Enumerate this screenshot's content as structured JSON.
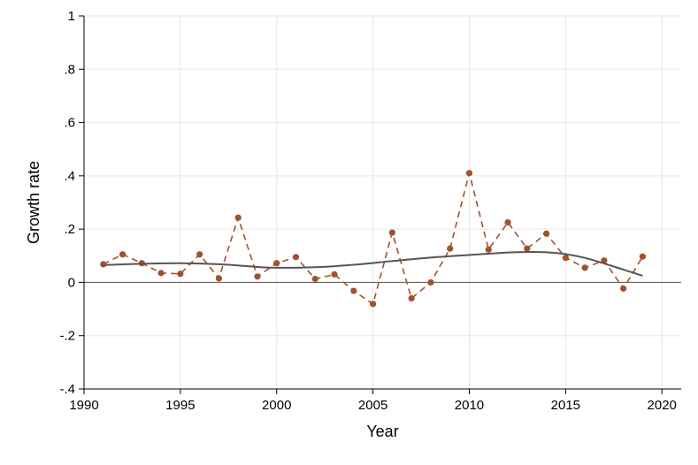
{
  "chart_data": {
    "type": "line",
    "xlabel": "Year",
    "ylabel": "Growth rate",
    "xlim": [
      1990,
      2021
    ],
    "ylim": [
      -0.4,
      1.0
    ],
    "x_ticks": [
      {
        "value": 1990,
        "label": "1990"
      },
      {
        "value": 1995,
        "label": "1995"
      },
      {
        "value": 2000,
        "label": "2000"
      },
      {
        "value": 2005,
        "label": "2005"
      },
      {
        "value": 2010,
        "label": "2010"
      },
      {
        "value": 2015,
        "label": "2015"
      },
      {
        "value": 2020,
        "label": "2020"
      }
    ],
    "y_ticks": [
      {
        "value": -0.4,
        "label": "-.4"
      },
      {
        "value": -0.2,
        "label": "-.2"
      },
      {
        "value": 0,
        "label": "0"
      },
      {
        "value": 0.2,
        "label": ".2"
      },
      {
        "value": 0.4,
        "label": ".4"
      },
      {
        "value": 0.6,
        "label": ".6"
      },
      {
        "value": 0.8,
        "label": ".8"
      },
      {
        "value": 1,
        "label": "1"
      }
    ],
    "grid": true,
    "reference_line_y": 0,
    "series": [
      {
        "style": "dashed-with-markers",
        "color": "#a0522d",
        "x": [
          1991,
          1992,
          1993,
          1994,
          1995,
          1996,
          1997,
          1998,
          1999,
          2000,
          2001,
          2002,
          2003,
          2004,
          2005,
          2006,
          2007,
          2008,
          2009,
          2010,
          2011,
          2012,
          2013,
          2014,
          2015,
          2016,
          2017,
          2018,
          2019
        ],
        "values": [
          0.068,
          0.105,
          0.072,
          0.035,
          0.032,
          0.105,
          0.015,
          0.243,
          0.022,
          0.072,
          0.095,
          0.013,
          0.03,
          -0.032,
          -0.081,
          0.187,
          -0.06,
          0.0,
          0.127,
          0.41,
          0.123,
          0.225,
          0.127,
          0.183,
          0.092,
          0.055,
          0.082,
          -0.023,
          0.097
        ]
      },
      {
        "style": "smooth-line",
        "color": "#555555",
        "x": [
          1991,
          1993,
          1995,
          1997,
          1999,
          2000,
          2002,
          2004,
          2006,
          2008,
          2010,
          2012,
          2013,
          2014,
          2015,
          2016,
          2017,
          2018,
          2019
        ],
        "values": [
          0.065,
          0.07,
          0.072,
          0.068,
          0.058,
          0.055,
          0.057,
          0.066,
          0.08,
          0.093,
          0.103,
          0.112,
          0.114,
          0.113,
          0.106,
          0.092,
          0.071,
          0.048,
          0.025
        ]
      }
    ]
  }
}
